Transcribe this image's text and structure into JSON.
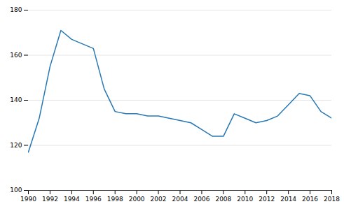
{
  "chart_data": {
    "type": "line",
    "x": [
      1990,
      1991,
      1992,
      1993,
      1994,
      1995,
      1996,
      1997,
      1998,
      1999,
      2000,
      2001,
      2002,
      2003,
      2004,
      2005,
      2006,
      2007,
      2008,
      2009,
      2010,
      2011,
      2012,
      2013,
      2014,
      2015,
      2016,
      2017,
      2018
    ],
    "values": [
      117,
      132,
      155,
      171,
      167,
      165,
      163,
      145,
      135,
      134,
      134,
      133,
      133,
      132,
      131,
      130,
      127,
      124,
      124,
      134,
      132,
      130,
      131,
      133,
      138,
      143,
      142,
      135,
      132
    ],
    "color": "#2878b5",
    "xlim": [
      1990,
      2018
    ],
    "xticks": [
      1990,
      1992,
      1994,
      1996,
      1998,
      2000,
      2002,
      2004,
      2006,
      2008,
      2010,
      2012,
      2014,
      2016,
      2018
    ],
    "ylim": [
      100,
      180
    ],
    "yticks": [
      100,
      120,
      140,
      160,
      180
    ],
    "grid": true
  }
}
